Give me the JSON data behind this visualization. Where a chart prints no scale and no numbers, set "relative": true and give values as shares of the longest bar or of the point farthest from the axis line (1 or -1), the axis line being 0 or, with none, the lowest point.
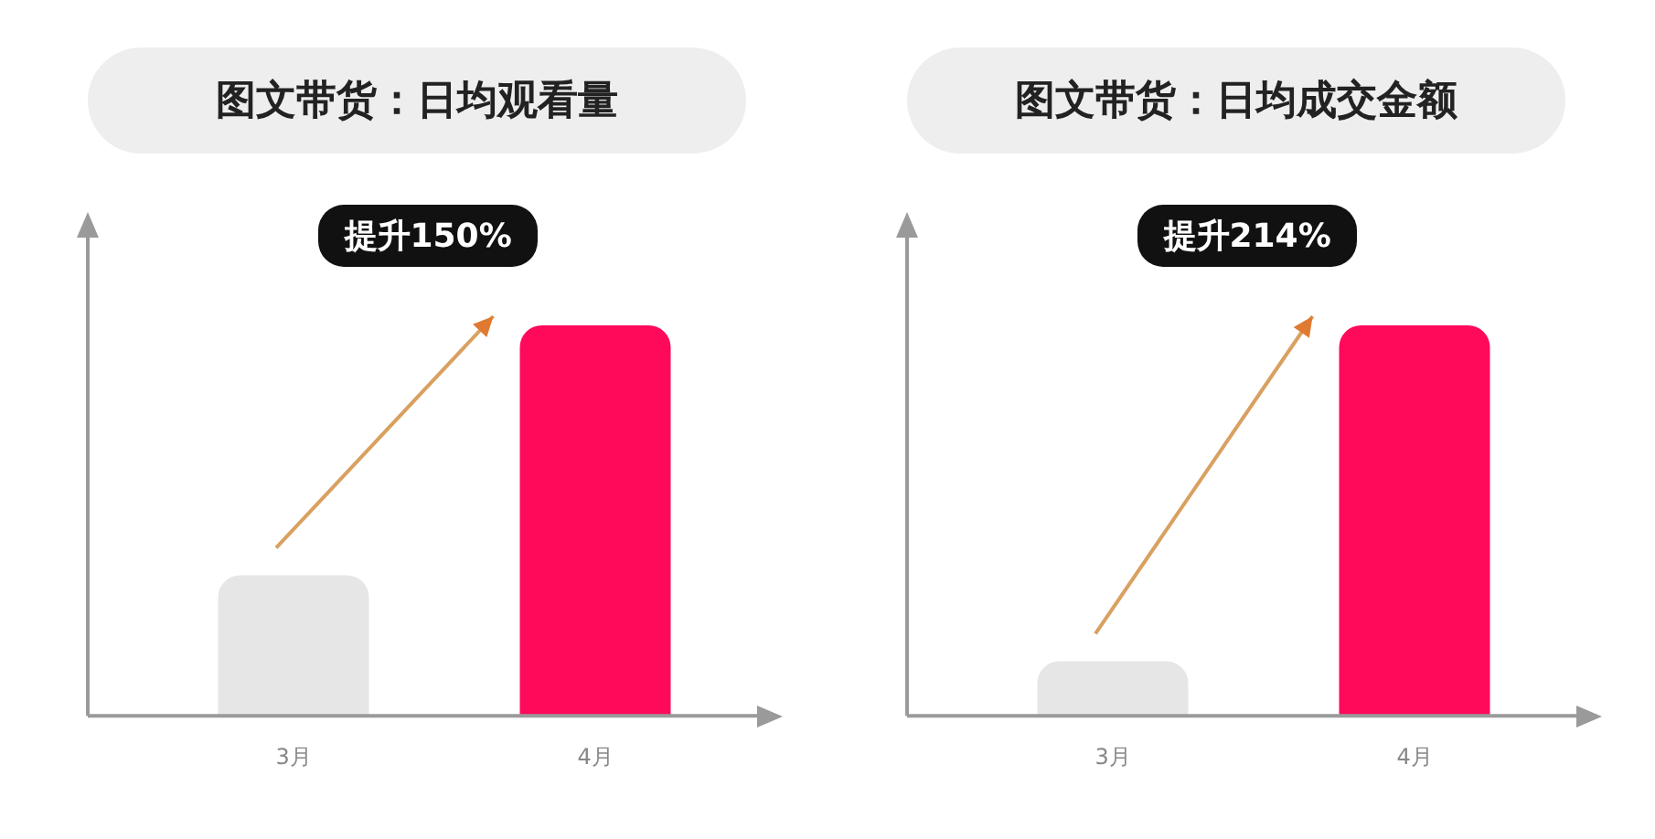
{
  "chart_data": [
    {
      "type": "bar",
      "title": "图文带货：日均观看量",
      "categories": [
        "3月",
        "4月"
      ],
      "values": [
        0.36,
        1
      ],
      "colors": [
        "#e6e6e6",
        "#ff0a5a"
      ],
      "relative": true,
      "annotations": [
        "提升150%"
      ],
      "grid": false,
      "legend": false
    },
    {
      "type": "bar",
      "title": "图文带货：日均成交金额",
      "categories": [
        "3月",
        "4月"
      ],
      "values": [
        0.14,
        1
      ],
      "colors": [
        "#e6e6e6",
        "#ff0a5a"
      ],
      "relative": true,
      "annotations": [
        "提升214%"
      ],
      "grid": false,
      "legend": false
    }
  ]
}
